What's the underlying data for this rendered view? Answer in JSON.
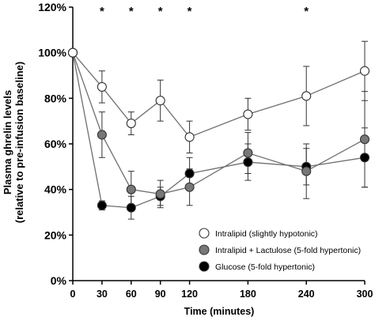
{
  "chart_data": {
    "type": "line",
    "title": "",
    "xlabel": "Time (minutes)",
    "ylabel": "Plasma ghrelin levels",
    "ylabel_sub": "(relative to pre-infusion baseline)",
    "x_ticks": [
      0,
      30,
      60,
      90,
      120,
      180,
      240,
      300
    ],
    "y_ticks": [
      "0%",
      "20%",
      "40%",
      "60%",
      "80%",
      "100%",
      "120%"
    ],
    "y_tick_values": [
      0,
      20,
      40,
      60,
      80,
      100,
      120
    ],
    "xlim": [
      0,
      300
    ],
    "ylim": [
      0,
      120
    ],
    "grid": false,
    "legend_position": "bottom-right",
    "significance_marker": "*",
    "significance_x": [
      30,
      60,
      90,
      120,
      240
    ],
    "series": [
      {
        "name": "Intralipid (slightly hypotonic)",
        "marker": "open-circle",
        "fill": "#ffffff",
        "line_color": "#6f6f6f",
        "x": [
          0,
          30,
          60,
          90,
          120,
          180,
          240,
          300
        ],
        "y": [
          100,
          85,
          69,
          79,
          63,
          73,
          81,
          92
        ],
        "err": [
          0,
          7,
          5,
          9,
          7,
          7,
          13,
          13
        ]
      },
      {
        "name": "Intralipid + Lactulose (5-fold hypertonic)",
        "marker": "gray-circle",
        "fill": "#777777",
        "line_color": "#6f6f6f",
        "x": [
          0,
          30,
          60,
          90,
          120,
          180,
          240,
          300
        ],
        "y": [
          100,
          64,
          40,
          38,
          41,
          56,
          48,
          62
        ],
        "err": [
          0,
          10,
          8,
          6,
          8,
          9,
          12,
          21
        ]
      },
      {
        "name": "Glucose (5-fold hypertonic)",
        "marker": "black-circle",
        "fill": "#000000",
        "line_color": "#6f6f6f",
        "x": [
          0,
          30,
          60,
          90,
          120,
          180,
          240,
          300
        ],
        "y": [
          100,
          33,
          32,
          37,
          47,
          52,
          50,
          54
        ],
        "err": [
          0,
          2,
          5,
          4,
          7,
          8,
          8,
          13
        ]
      }
    ]
  }
}
